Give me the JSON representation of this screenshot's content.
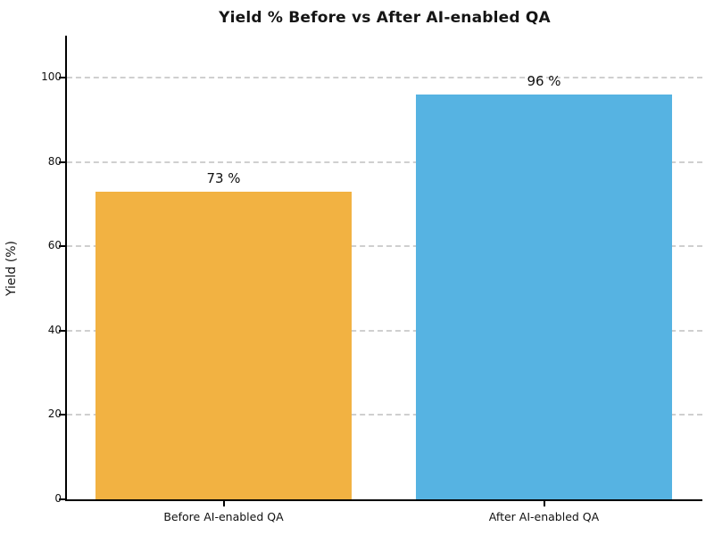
{
  "chart_data": {
    "type": "bar",
    "title": "Yield % Before vs After AI-enabled QA",
    "ylabel": "Yield (%)",
    "xlabel": "",
    "categories": [
      "Before AI-enabled QA",
      "After AI-enabled QA"
    ],
    "values": [
      73,
      96
    ],
    "bar_labels": [
      "73 %",
      "96 %"
    ],
    "bar_colors": [
      "#F2B242",
      "#56B3E2"
    ],
    "yticks": [
      0,
      20,
      40,
      60,
      80,
      100
    ],
    "ylim": [
      0,
      110
    ],
    "grid": "horizontal-dashed",
    "gridline_color": "#cfcfcf",
    "legend": "none"
  }
}
